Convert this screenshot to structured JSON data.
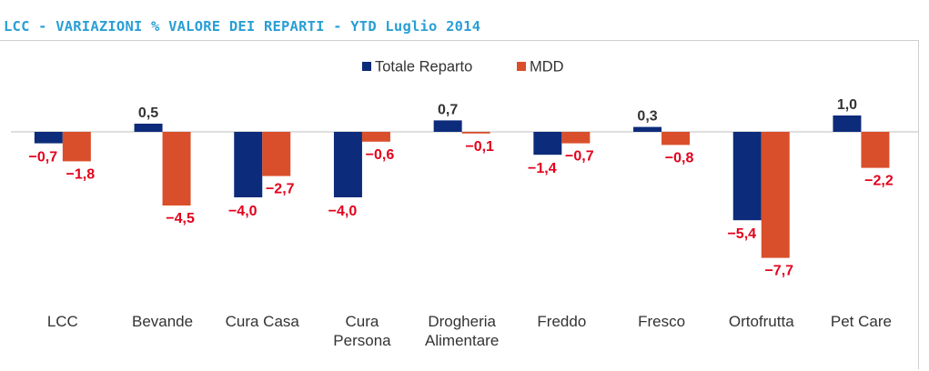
{
  "title": "LCC - VARIAZIONI % VALORE DEI REPARTI - YTD Luglio 2014",
  "colors": {
    "title": "#2a9fd6",
    "series1": "#0c2b7a",
    "series2": "#d94f2b",
    "negative_label": "#e3001b",
    "positive_label": "#333333"
  },
  "chart_data": {
    "type": "bar",
    "categories": [
      [
        "LCC"
      ],
      [
        "Bevande"
      ],
      [
        "Cura Casa"
      ],
      [
        "Cura",
        "Persona"
      ],
      [
        "Drogheria",
        "Alimentare"
      ],
      [
        "Freddo"
      ],
      [
        "Fresco"
      ],
      [
        "Ortofrutta"
      ],
      [
        "Pet Care"
      ]
    ],
    "series": [
      {
        "name": "Totale Reparto",
        "values": [
          -0.7,
          0.5,
          -4.0,
          -4.0,
          0.7,
          -1.4,
          0.3,
          -5.4,
          1.0
        ],
        "labels": [
          "-0,7",
          "0,5",
          "-4,0",
          "-4,0",
          "0,7",
          "-1,4",
          "0,3",
          "-5,4",
          "1,0"
        ]
      },
      {
        "name": "MDD",
        "values": [
          -1.8,
          -4.5,
          -2.7,
          -0.6,
          -0.1,
          -0.7,
          -0.8,
          -7.7,
          -2.2
        ],
        "labels": [
          "-1,8",
          "-4,5",
          "-2,7",
          "-0,6",
          "-0,1",
          "-0,7",
          "-0,8",
          "-7,7",
          "-2,2"
        ]
      }
    ],
    "legend_position": "top-center",
    "grid": false
  }
}
